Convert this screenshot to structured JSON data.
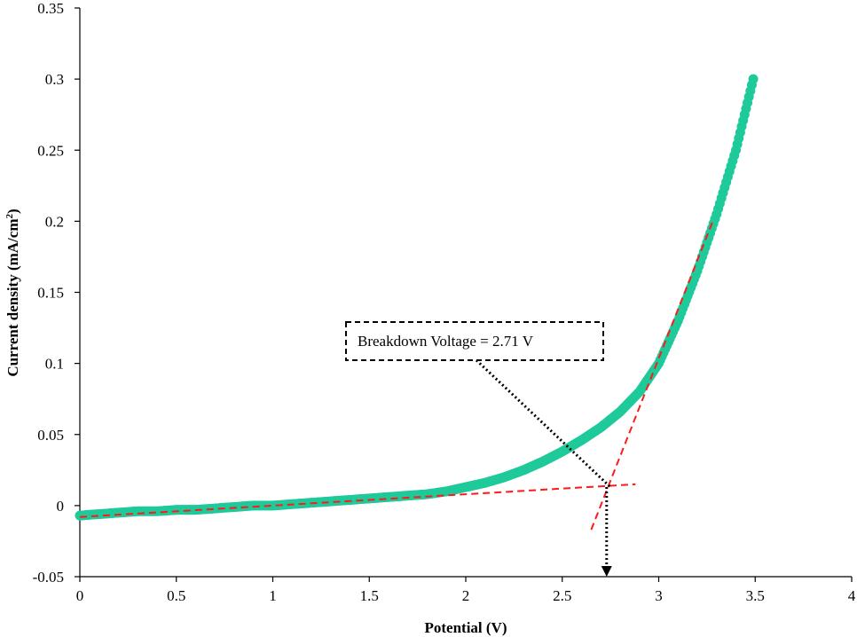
{
  "chart_data": {
    "type": "scatter",
    "xlabel": "Potential (V)",
    "ylabel": "Current density (mA/cm",
    "ylabel_sup": "2",
    "ylabel_end": ")",
    "xlim": [
      0,
      4
    ],
    "ylim": [
      -0.05,
      0.35
    ],
    "xticks": [
      0,
      0.5,
      1,
      1.5,
      2,
      2.5,
      3,
      3.5,
      4
    ],
    "xtick_labels": [
      "0",
      "0.5",
      "1",
      "1.5",
      "2",
      "2.5",
      "3",
      "3.5",
      "4"
    ],
    "yticks": [
      -0.05,
      0,
      0.05,
      0.1,
      0.15,
      0.2,
      0.25,
      0.3,
      0.35
    ],
    "ytick_labels": [
      "-0.05",
      "0",
      "0.05",
      "0.1",
      "0.15",
      "0.2",
      "0.25",
      "0.3",
      "0.35"
    ],
    "grid": false,
    "series": [
      {
        "color": "#1ec99a",
        "x": [
          0.0,
          0.1,
          0.2,
          0.3,
          0.4,
          0.5,
          0.6,
          0.7,
          0.8,
          0.9,
          1.0,
          1.1,
          1.2,
          1.3,
          1.4,
          1.5,
          1.6,
          1.7,
          1.8,
          1.9,
          2.0,
          2.1,
          2.2,
          2.3,
          2.4,
          2.5,
          2.6,
          2.7,
          2.8,
          2.9,
          3.0,
          3.1,
          3.2,
          3.3,
          3.4,
          3.49
        ],
        "y": [
          -0.007,
          -0.006,
          -0.005,
          -0.004,
          -0.004,
          -0.003,
          -0.003,
          -0.002,
          -0.001,
          0.0,
          0.0,
          0.001,
          0.002,
          0.003,
          0.004,
          0.005,
          0.006,
          0.007,
          0.008,
          0.01,
          0.013,
          0.016,
          0.02,
          0.025,
          0.031,
          0.038,
          0.046,
          0.055,
          0.066,
          0.08,
          0.1,
          0.13,
          0.165,
          0.205,
          0.25,
          0.3
        ]
      }
    ],
    "fit_lines": [
      {
        "color": "#ff1a1a",
        "x": [
          0.0,
          2.88
        ],
        "y": [
          -0.008,
          0.015
        ]
      },
      {
        "color": "#ff1a1a",
        "x": [
          2.65,
          3.28
        ],
        "y": [
          -0.017,
          0.2
        ]
      }
    ],
    "annotation": {
      "text": "Breakdown Voltage  = 2.71 V",
      "target_x": 2.73
    }
  }
}
